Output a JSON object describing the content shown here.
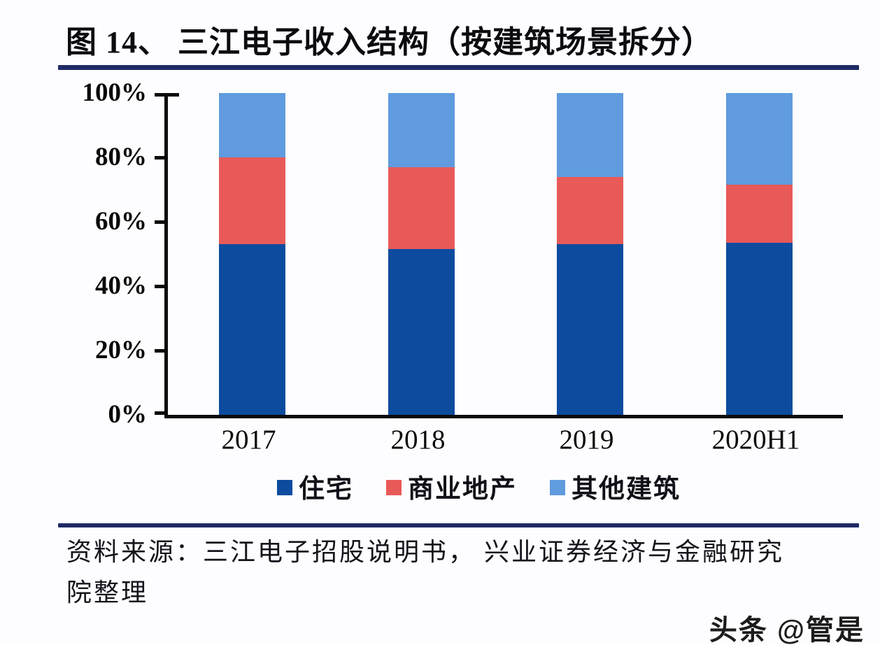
{
  "title": "图 14、 三江电子收入结构（按建筑场景拆分）",
  "source": {
    "lines": [
      "资料来源：三江电子招股说明书， 兴业证券经济与金融研究",
      "院整理"
    ]
  },
  "watermark": "头条 @管是",
  "colors": {
    "residential": "#0C4B9E",
    "commercial": "#E85A58",
    "other": "#5F9BDE",
    "rule": "#1F2A66",
    "axis": "#0A0A0A"
  },
  "chart_data": {
    "type": "bar",
    "stacked": true,
    "percent": true,
    "title": "三江电子收入结构（按建筑场景拆分）",
    "categories": [
      "2017",
      "2018",
      "2019",
      "2020H1"
    ],
    "series": [
      {
        "name": "住宅",
        "color": "#0C4B9E",
        "values": [
          53,
          51.5,
          53,
          53.5
        ]
      },
      {
        "name": "商业地产",
        "color": "#E85A58",
        "values": [
          27,
          25.5,
          21,
          18
        ]
      },
      {
        "name": "其他建筑",
        "color": "#5F9BDE",
        "values": [
          20,
          23,
          26,
          28.5
        ]
      }
    ],
    "xlabel": "",
    "ylabel": "",
    "ylim": [
      0,
      100
    ],
    "yticks": [
      "0%",
      "20%",
      "40%",
      "60%",
      "80%",
      "100%"
    ],
    "grid": false,
    "legend_position": "bottom"
  }
}
